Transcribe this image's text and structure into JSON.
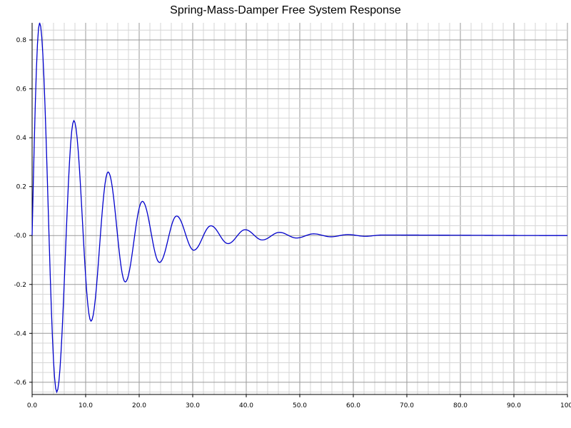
{
  "chart_data": {
    "type": "line",
    "title": "Spring-Mass-Damper Free System Response",
    "xlabel": "",
    "ylabel": "",
    "xlim": [
      0,
      100
    ],
    "ylim": [
      -0.65,
      0.87
    ],
    "x_ticks": [
      "0.0",
      "10.0",
      "20.0",
      "30.0",
      "40.0",
      "50.0",
      "60.0",
      "70.0",
      "80.0",
      "90.0",
      "100."
    ],
    "y_ticks": [
      "0.8",
      "0.6",
      "0.4",
      "0.2",
      "-0.0",
      "-0.2",
      "-0.4",
      "-0.6"
    ],
    "grid": true,
    "line_color": "#0000cc",
    "series": [
      {
        "name": "",
        "x": [
          0,
          1.4,
          4.6,
          7.8,
          11.0,
          14.2,
          17.4,
          20.6,
          23.8,
          27.0,
          30.2,
          33.4,
          36.6,
          39.8,
          43.0,
          46.2,
          49.4,
          52.6,
          55.8,
          59.0,
          62.2,
          65.4,
          100
        ],
        "y": [
          0,
          0.87,
          -0.64,
          0.47,
          -0.35,
          0.26,
          -0.19,
          0.14,
          -0.11,
          0.08,
          -0.06,
          0.04,
          -0.033,
          0.024,
          -0.018,
          0.013,
          -0.01,
          0.007,
          -0.005,
          0.004,
          -0.003,
          0.002,
          0
        ]
      }
    ]
  }
}
